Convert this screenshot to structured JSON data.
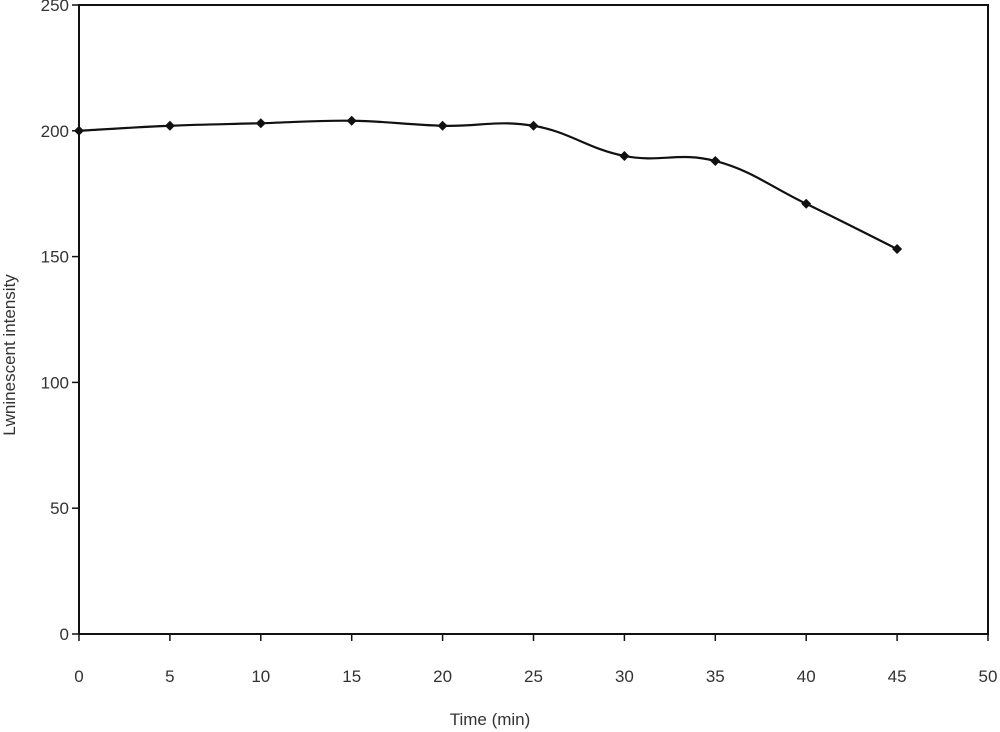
{
  "chart_data": {
    "type": "line",
    "title": "",
    "xlabel": "Time (min)",
    "ylabel": "Lwninescent intensity",
    "xlim": [
      0,
      50
    ],
    "ylim": [
      0,
      250
    ],
    "x_ticks": [
      0,
      5,
      10,
      15,
      20,
      25,
      30,
      35,
      40,
      45,
      50
    ],
    "y_ticks": [
      0,
      50,
      100,
      150,
      200,
      250
    ],
    "grid": false,
    "legend": "none",
    "series": [
      {
        "x": [
          0,
          5,
          10,
          15,
          20,
          25,
          30,
          35,
          40,
          45
        ],
        "y": [
          200,
          202,
          203,
          204,
          202,
          202,
          190,
          188,
          171,
          153
        ],
        "color": "#111111",
        "marker": "diamond",
        "smooth": true
      }
    ]
  }
}
